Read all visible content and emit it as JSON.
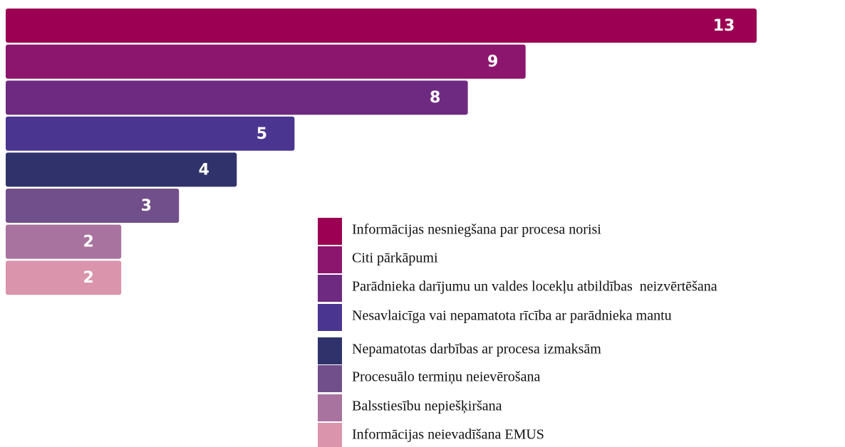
{
  "chart_data": {
    "type": "bar",
    "orientation": "horizontal",
    "categories": [
      "Informācijas nesniegšana par procesa norisi",
      "Citi pārkāpumi",
      "Parādnieka darījumu un valdes locekļu atbildības  neizvērtēšana",
      "Nesavlaicīga vai nepamatota rīcība ar parādnieka mantu",
      "Nepamatotas darbības ar procesa izmaksām",
      "Procesuālo termiņu neievērošana",
      "Balsstiesību nepiešķiršana",
      "Informācijas neievadīšana EMUS"
    ],
    "values": [
      13,
      9,
      8,
      5,
      4,
      3,
      2,
      2
    ],
    "colors": [
      "#9c0052",
      "#8c166d",
      "#6e2a80",
      "#4a3590",
      "#30336b",
      "#714f8a",
      "#a8739f",
      "#da94ab"
    ]
  }
}
